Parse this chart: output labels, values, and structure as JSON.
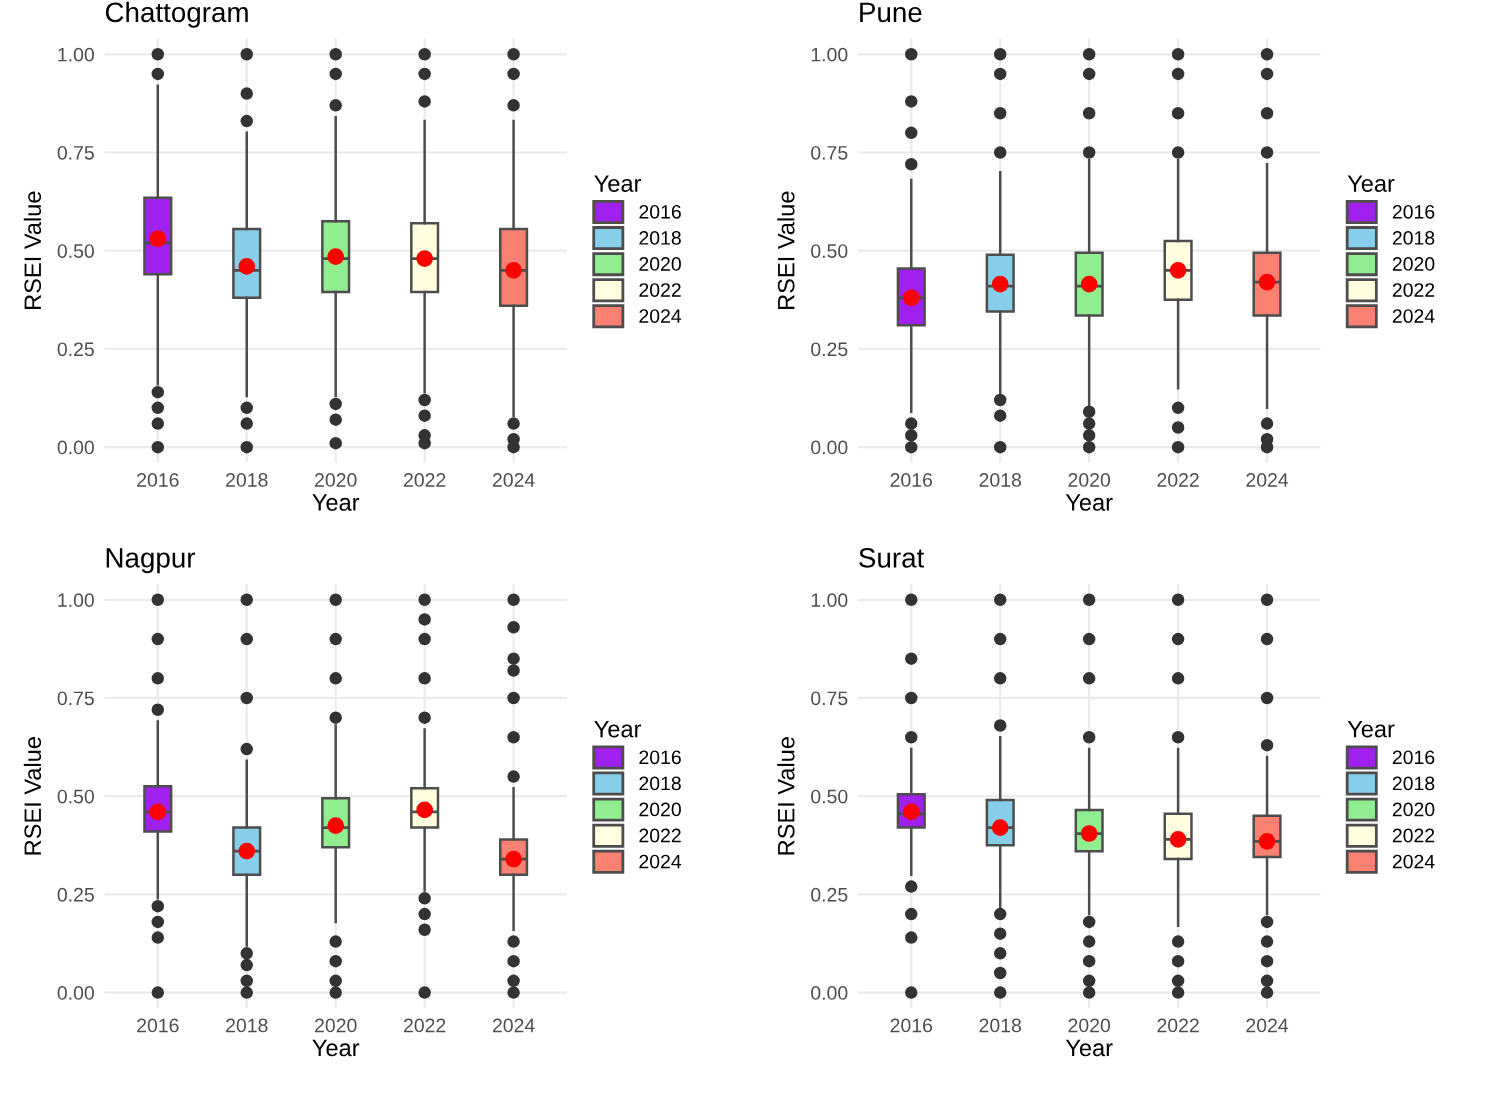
{
  "chart_data": [
    {
      "type": "box",
      "title": "Chattogram",
      "xlabel": "Year",
      "ylabel": "RSEI Value",
      "legend_title": "Year",
      "legend": "right",
      "grid": true,
      "categories": [
        "2016",
        "2018",
        "2020",
        "2022",
        "2024"
      ],
      "ylim": [
        -0.04,
        1.04
      ],
      "yticks": [
        {
          "value": 0,
          "label": "0.00"
        },
        {
          "value": 0.25,
          "label": "0.25"
        },
        {
          "value": 0.5,
          "label": "0.50"
        },
        {
          "value": 0.75,
          "label": "0.75"
        },
        {
          "value": 1,
          "label": "1.00"
        }
      ],
      "series": [
        {
          "name": "2016",
          "color": "#a020f0",
          "boxes": [
            {
              "low": 0.16,
              "q1": 0.44,
              "median": 0.52,
              "q3": 0.635,
              "high": 0.92,
              "mean": 0.53,
              "outliers": [
                0,
                0.06,
                0.1,
                0.14,
                0.95,
                1.0
              ]
            },
            null,
            null,
            null,
            null
          ]
        },
        {
          "name": "2018",
          "color": "#87ceeb",
          "boxes": [
            null,
            {
              "low": 0.13,
              "q1": 0.38,
              "median": 0.45,
              "q3": 0.555,
              "high": 0.8,
              "mean": 0.46,
              "outliers": [
                0,
                0.06,
                0.1,
                0.83,
                0.9,
                1.0
              ]
            },
            null,
            null,
            null
          ]
        },
        {
          "name": "2020",
          "color": "#90ee90",
          "boxes": [
            null,
            null,
            {
              "low": 0.13,
              "q1": 0.395,
              "median": 0.48,
              "q3": 0.575,
              "high": 0.84,
              "mean": 0.485,
              "outliers": [
                0.01,
                0.07,
                0.11,
                0.87,
                0.95,
                1.0
              ]
            },
            null,
            null
          ]
        },
        {
          "name": "2022",
          "color": "#ffffe0",
          "boxes": [
            null,
            null,
            null,
            {
              "low": 0.14,
              "q1": 0.395,
              "median": 0.48,
              "q3": 0.57,
              "high": 0.83,
              "mean": 0.48,
              "outliers": [
                0.01,
                0.03,
                0.08,
                0.12,
                0.88,
                0.95,
                1.0
              ]
            },
            null
          ]
        },
        {
          "name": "2024",
          "color": "#fa8072",
          "boxes": [
            null,
            null,
            null,
            null,
            {
              "low": 0.08,
              "q1": 0.36,
              "median": 0.45,
              "q3": 0.555,
              "high": 0.83,
              "mean": 0.45,
              "outliers": [
                0,
                0.02,
                0.06,
                0.87,
                0.95,
                1.0
              ]
            }
          ]
        }
      ]
    },
    {
      "type": "box",
      "title": "Pune",
      "xlabel": "Year",
      "ylabel": "RSEI Value",
      "legend_title": "Year",
      "legend": "right",
      "grid": true,
      "categories": [
        "2016",
        "2018",
        "2020",
        "2022",
        "2024"
      ],
      "ylim": [
        -0.04,
        1.04
      ],
      "yticks": [
        {
          "value": 0,
          "label": "0.00"
        },
        {
          "value": 0.25,
          "label": "0.25"
        },
        {
          "value": 0.5,
          "label": "0.50"
        },
        {
          "value": 0.75,
          "label": "0.75"
        },
        {
          "value": 1,
          "label": "1.00"
        }
      ],
      "series": [
        {
          "name": "2016",
          "color": "#a020f0",
          "boxes": [
            {
              "low": 0.09,
              "q1": 0.31,
              "median": 0.38,
              "q3": 0.455,
              "high": 0.68,
              "mean": 0.38,
              "outliers": [
                0,
                0.03,
                0.06,
                0.72,
                0.8,
                0.88,
                1.0
              ]
            },
            null,
            null,
            null,
            null
          ]
        },
        {
          "name": "2018",
          "color": "#87ceeb",
          "boxes": [
            null,
            {
              "low": 0.13,
              "q1": 0.345,
              "median": 0.41,
              "q3": 0.49,
              "high": 0.7,
              "mean": 0.415,
              "outliers": [
                0,
                0.08,
                0.12,
                0.75,
                0.85,
                0.95,
                1.0
              ]
            },
            null,
            null,
            null
          ]
        },
        {
          "name": "2020",
          "color": "#90ee90",
          "boxes": [
            null,
            null,
            {
              "low": 0.1,
              "q1": 0.335,
              "median": 0.41,
              "q3": 0.495,
              "high": 0.73,
              "mean": 0.415,
              "outliers": [
                0,
                0.03,
                0.06,
                0.09,
                0.75,
                0.85,
                0.95,
                1.0
              ]
            },
            null,
            null
          ]
        },
        {
          "name": "2022",
          "color": "#ffffe0",
          "boxes": [
            null,
            null,
            null,
            {
              "low": 0.15,
              "q1": 0.375,
              "median": 0.45,
              "q3": 0.525,
              "high": 0.73,
              "mean": 0.45,
              "outliers": [
                0,
                0.05,
                0.1,
                0.75,
                0.85,
                0.95,
                1.0
              ]
            },
            null
          ]
        },
        {
          "name": "2024",
          "color": "#fa8072",
          "boxes": [
            null,
            null,
            null,
            null,
            {
              "low": 0.1,
              "q1": 0.335,
              "median": 0.42,
              "q3": 0.495,
              "high": 0.72,
              "mean": 0.42,
              "outliers": [
                0,
                0.02,
                0.06,
                0.75,
                0.85,
                0.95,
                1.0
              ]
            }
          ]
        }
      ]
    },
    {
      "type": "box",
      "title": "Nagpur",
      "xlabel": "Year",
      "ylabel": "RSEI Value",
      "legend_title": "Year",
      "legend": "right",
      "grid": true,
      "categories": [
        "2016",
        "2018",
        "2020",
        "2022",
        "2024"
      ],
      "ylim": [
        -0.04,
        1.04
      ],
      "yticks": [
        {
          "value": 0,
          "label": "0.00"
        },
        {
          "value": 0.25,
          "label": "0.25"
        },
        {
          "value": 0.5,
          "label": "0.50"
        },
        {
          "value": 0.75,
          "label": "0.75"
        },
        {
          "value": 1,
          "label": "1.00"
        }
      ],
      "series": [
        {
          "name": "2016",
          "color": "#a020f0",
          "boxes": [
            {
              "low": 0.24,
              "q1": 0.41,
              "median": 0.46,
              "q3": 0.525,
              "high": 0.69,
              "mean": 0.46,
              "outliers": [
                0,
                0.14,
                0.18,
                0.22,
                0.72,
                0.8,
                0.9,
                1.0
              ]
            },
            null,
            null,
            null,
            null
          ]
        },
        {
          "name": "2018",
          "color": "#87ceeb",
          "boxes": [
            null,
            {
              "low": 0.12,
              "q1": 0.3,
              "median": 0.36,
              "q3": 0.42,
              "high": 0.59,
              "mean": 0.36,
              "outliers": [
                0,
                0.03,
                0.07,
                0.1,
                0.62,
                0.75,
                0.9,
                1.0
              ]
            },
            null,
            null,
            null
          ]
        },
        {
          "name": "2020",
          "color": "#90ee90",
          "boxes": [
            null,
            null,
            {
              "low": 0.18,
              "q1": 0.37,
              "median": 0.42,
              "q3": 0.495,
              "high": 0.68,
              "mean": 0.425,
              "outliers": [
                0,
                0.03,
                0.08,
                0.13,
                0.7,
                0.8,
                0.9,
                1.0
              ]
            },
            null,
            null
          ]
        },
        {
          "name": "2022",
          "color": "#ffffe0",
          "boxes": [
            null,
            null,
            null,
            {
              "low": 0.26,
              "q1": 0.42,
              "median": 0.46,
              "q3": 0.52,
              "high": 0.67,
              "mean": 0.465,
              "outliers": [
                0,
                0.16,
                0.2,
                0.24,
                0.7,
                0.8,
                0.9,
                0.95,
                1.0
              ]
            },
            null
          ]
        },
        {
          "name": "2024",
          "color": "#fa8072",
          "boxes": [
            null,
            null,
            null,
            null,
            {
              "low": 0.16,
              "q1": 0.3,
              "median": 0.34,
              "q3": 0.39,
              "high": 0.52,
              "mean": 0.34,
              "outliers": [
                0,
                0.03,
                0.08,
                0.13,
                0.55,
                0.65,
                0.75,
                0.82,
                0.85,
                0.93,
                1.0
              ]
            }
          ]
        }
      ]
    },
    {
      "type": "box",
      "title": "Surat",
      "xlabel": "Year",
      "ylabel": "RSEI Value",
      "legend_title": "Year",
      "legend": "right",
      "grid": true,
      "categories": [
        "2016",
        "2018",
        "2020",
        "2022",
        "2024"
      ],
      "ylim": [
        -0.04,
        1.04
      ],
      "yticks": [
        {
          "value": 0,
          "label": "0.00"
        },
        {
          "value": 0.25,
          "label": "0.25"
        },
        {
          "value": 0.5,
          "label": "0.50"
        },
        {
          "value": 0.75,
          "label": "0.75"
        },
        {
          "value": 1,
          "label": "1.00"
        }
      ],
      "series": [
        {
          "name": "2016",
          "color": "#a020f0",
          "boxes": [
            {
              "low": 0.3,
              "q1": 0.42,
              "median": 0.455,
              "q3": 0.505,
              "high": 0.62,
              "mean": 0.46,
              "outliers": [
                0,
                0.14,
                0.2,
                0.27,
                0.65,
                0.75,
                0.85,
                1.0
              ]
            },
            null,
            null,
            null,
            null
          ]
        },
        {
          "name": "2018",
          "color": "#87ceeb",
          "boxes": [
            null,
            {
              "low": 0.21,
              "q1": 0.375,
              "median": 0.42,
              "q3": 0.49,
              "high": 0.65,
              "mean": 0.42,
              "outliers": [
                0,
                0.05,
                0.1,
                0.15,
                0.2,
                0.68,
                0.8,
                0.9,
                1.0
              ]
            },
            null,
            null,
            null
          ]
        },
        {
          "name": "2020",
          "color": "#90ee90",
          "boxes": [
            null,
            null,
            {
              "low": 0.2,
              "q1": 0.36,
              "median": 0.405,
              "q3": 0.465,
              "high": 0.62,
              "mean": 0.405,
              "outliers": [
                0,
                0.03,
                0.08,
                0.13,
                0.18,
                0.65,
                0.8,
                0.9,
                1.0
              ]
            },
            null,
            null
          ]
        },
        {
          "name": "2022",
          "color": "#ffffe0",
          "boxes": [
            null,
            null,
            null,
            {
              "low": 0.17,
              "q1": 0.34,
              "median": 0.39,
              "q3": 0.455,
              "high": 0.62,
              "mean": 0.39,
              "outliers": [
                0,
                0.03,
                0.08,
                0.13,
                0.65,
                0.8,
                0.9,
                1.0
              ]
            },
            null
          ]
        },
        {
          "name": "2024",
          "color": "#fa8072",
          "boxes": [
            null,
            null,
            null,
            null,
            {
              "low": 0.2,
              "q1": 0.345,
              "median": 0.385,
              "q3": 0.45,
              "high": 0.6,
              "mean": 0.385,
              "outliers": [
                0,
                0.03,
                0.08,
                0.13,
                0.18,
                0.63,
                0.75,
                0.9,
                1.0
              ]
            }
          ]
        }
      ]
    }
  ]
}
